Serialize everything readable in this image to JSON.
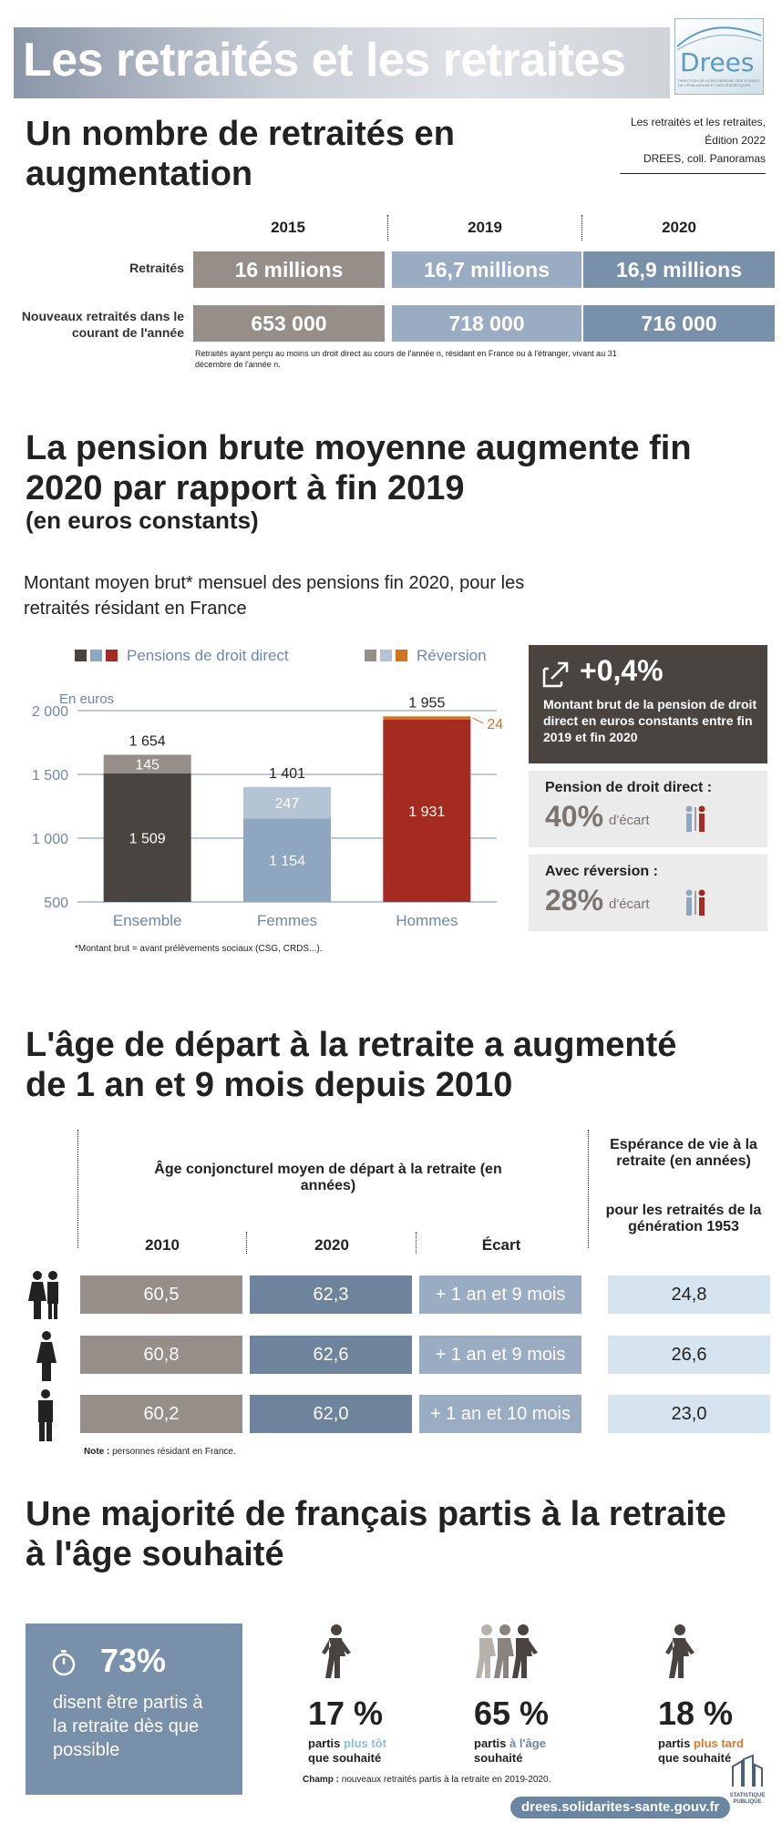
{
  "header": {
    "title": "Les retraités et les retraites",
    "logo_word": "Drees",
    "logo_sub": "DIRECTION DE LA RECHERCHE, DES ÉTUDES, DE L'ÉVALUATION ET DES STATISTIQUES"
  },
  "section1": {
    "title": "Un nombre de retraités en augmentation",
    "source": [
      "Les retraités et les retraites,",
      "Édition 2022",
      "DREES, coll. Panoramas"
    ],
    "years": [
      "2015",
      "2019",
      "2020"
    ],
    "rows": [
      {
        "label": "Retraités",
        "values": [
          "16 millions",
          "16,7 millions",
          "16,9 millions"
        ]
      },
      {
        "label": "Nouveaux retraités dans le courant de l'année",
        "values": [
          "653 000",
          "718 000",
          "716 000"
        ]
      }
    ],
    "note": "Retraités ayant perçu au moins un droit direct au cours de l'année n, résidant en France ou à l'étranger, vivant au 31 décembre de l'année n."
  },
  "section2": {
    "title": "La pension brute moyenne augmente fin 2020 par rapport à fin 2019",
    "subtitle": "(en euros constants)",
    "description": "Montant moyen brut* mensuel des pensions fin 2020, pour les retraités résidant en France",
    "legend_direct": "Pensions de droit direct",
    "legend_reversion": "Réversion",
    "footnote": "*Montant brut = avant prélèvements sociaux (CSG, CRDS...).",
    "kpi_main": {
      "value": "+0,4%",
      "text": "Montant brut de la pension de droit direct en euros constants entre fin 2019 et fin 2020"
    },
    "kpi_direct": {
      "label": "Pension de droit direct :",
      "value": "40%",
      "unit": "d'écart"
    },
    "kpi_reversion": {
      "label": "Avec réversion :",
      "value": "28%",
      "unit": "d'écart"
    }
  },
  "chart_data": {
    "type": "bar",
    "ylabel": "En euros",
    "ylim": [
      500,
      2000
    ],
    "yticks": [
      500,
      1000,
      1500,
      2000
    ],
    "ytick_labels": [
      "500",
      "1 000",
      "1 500",
      "2 000"
    ],
    "categories": [
      "Ensemble",
      "Femmes",
      "Hommes"
    ],
    "series": [
      {
        "name": "Pensions de droit direct",
        "values": [
          1509,
          1154,
          1931
        ],
        "labels": [
          "1 509",
          "1 154",
          "1 931"
        ],
        "colors": [
          "#4a4440",
          "#8ea6bf",
          "#a52a1f"
        ]
      },
      {
        "name": "Réversion",
        "values": [
          145,
          247,
          24
        ],
        "labels": [
          "145",
          "247",
          "24"
        ],
        "colors": [
          "#958e89",
          "#b4c4d4",
          "#d2731e"
        ]
      }
    ],
    "totals": [
      1654,
      1401,
      1955
    ],
    "total_labels": [
      "1 654",
      "1 401",
      "1 955"
    ],
    "grid": true
  },
  "section3": {
    "title": "L'âge de départ à la retraite a augmenté de 1 an et 9 mois depuis 2010",
    "col_header": "Âge conjoncturel moyen de départ à la retraite (en années)",
    "life_header": "Espérance de vie à la retraite (en années)",
    "life_sub": "pour les retraités de la génération 1953",
    "years": [
      "2010",
      "2020",
      "Écart"
    ],
    "rows": [
      {
        "icon": "couple-icon",
        "v2010": "60,5",
        "v2020": "62,3",
        "gap": "+ 1 an et 9 mois",
        "life": "24,8"
      },
      {
        "icon": "woman-icon",
        "v2010": "60,8",
        "v2020": "62,6",
        "gap": "+ 1 an et 9 mois",
        "life": "26,6"
      },
      {
        "icon": "man-icon",
        "v2010": "60,2",
        "v2020": "62,0",
        "gap": "+ 1 an et 10 mois",
        "life": "23,0"
      }
    ],
    "note_label": "Note :",
    "note_text": " personnes résidant en France."
  },
  "section4": {
    "title": "Une majorité de français partis à la retraite à l'âge souhaité",
    "main_value": "73%",
    "main_text": "disent être partis à la retraite dès que possible",
    "items": [
      {
        "value": "17 %",
        "pre": "partis ",
        "hl": "plus tôt",
        "post": "que souhaité",
        "color": "#a9cde3",
        "hl_color": "#8cbfdc"
      },
      {
        "value": "65 %",
        "pre": "partis ",
        "hl": "à l'âge",
        "post": "souhaité",
        "color": "#6b86a3",
        "hl_color": "#6b86a3"
      },
      {
        "value": "18 %",
        "pre": "partis ",
        "hl": "plus tard",
        "post": "que souhaité",
        "color": "#c95a1e",
        "hl_color": "#e0782c"
      }
    ],
    "champ_label": "Champ :",
    "champ_text": " nouveaux retraités partis à la retraite en 2019-2020."
  },
  "footer": {
    "url": "drees.solidarites-sante.gouv.fr",
    "badge": "STATISTIQUE PUBLIQUE"
  }
}
